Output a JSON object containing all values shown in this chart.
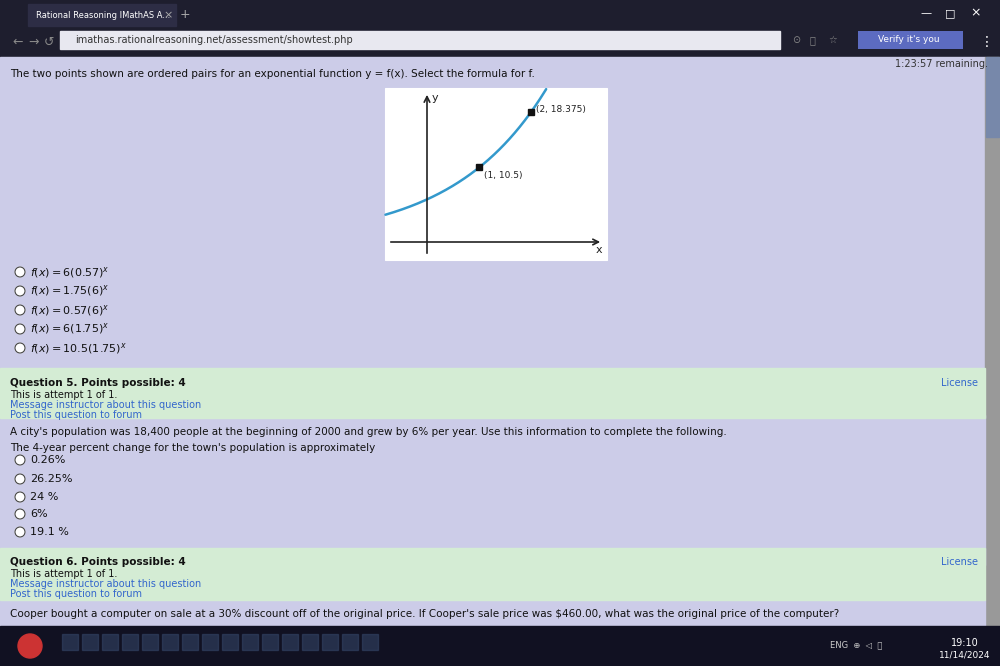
{
  "bg_lavender": "#cccce8",
  "bg_green": "#d4ecd4",
  "browser_dark": "#1e1e2e",
  "tab_bg": "#2d2d45",
  "addr_bar_bg": "#e8e8f0",
  "verify_btn": "#5c6bc0",
  "curve_color": "#3399cc",
  "graph_bg": "white",
  "text_dark": "#111111",
  "link_blue": "#3366cc",
  "scrollbar_bg": "#999999",
  "scrollbar_thumb": "#668899",
  "taskbar_bg": "#111122",
  "q4_text": "The two points shown are ordered pairs for an exponential function y = f(x). Select the formula for f.",
  "timer": "1:23:57 remaining.",
  "url": "imathas.rationalreasoning.net/assessment/showtest.php",
  "verify_text": "Verify it's you",
  "tab_text": "Rational Reasoning IMathAS A...",
  "points": [
    [
      1,
      10.5
    ],
    [
      2,
      18.375
    ]
  ],
  "point_labels": [
    "(1, 10.5)",
    "(2, 18.375)"
  ],
  "options_q4": [
    "f(x) = 6(0.57)^x",
    "f(x) = 1.75(6)^x",
    "f(x) = 0.57(6)^x",
    "f(x) = 6(1.75)^x",
    "f(x) = 10.5(1.75)^x"
  ],
  "q5_label": "Question 5. Points possible: 4",
  "q5_attempt": "This is attempt 1 of 1.",
  "q5_link1": "Message instructor about this question",
  "q5_link2": "Post this question to forum",
  "license_text": "License",
  "q6_text": "A city's population was 18,400 people at the beginning of 2000 and grew by 6% per year. Use this information to complete the following.",
  "q6_sub": "The 4-year percent change for the town's population is approximately",
  "options_q6": [
    "0.26%",
    "26.25%",
    "24 %",
    "6%",
    "19.1 %"
  ],
  "q6_label": "Question 6. Points possible: 4",
  "q7_text": "Cooper bought a computer on sale at a 30% discount off of the original price. If Cooper's sale price was $460.00, what was the original price of the computer?",
  "time_text": "19:10",
  "date_text": "11/14/2024"
}
